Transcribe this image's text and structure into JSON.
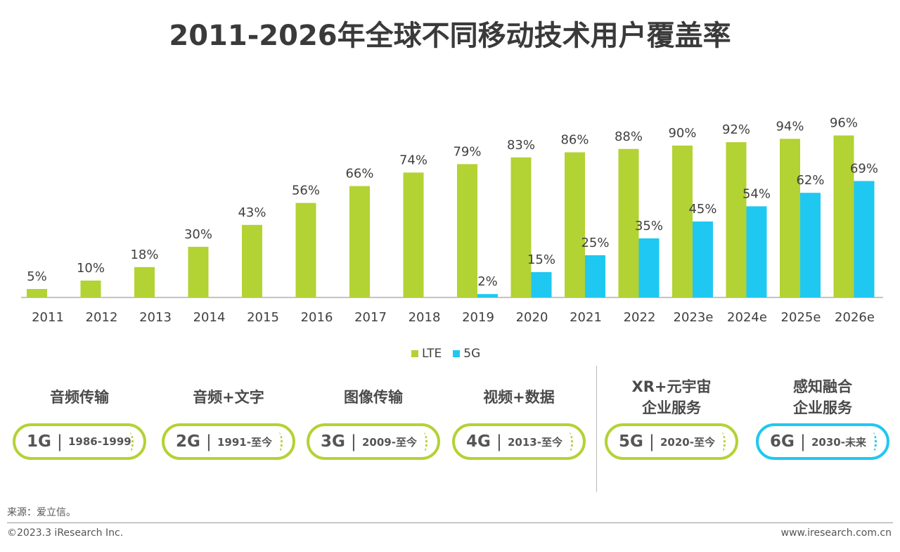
{
  "chart_data": {
    "type": "bar",
    "title": "2011-2026年全球不同移动技术用户覆盖率",
    "categories": [
      "2011",
      "2012",
      "2013",
      "2014",
      "2015",
      "2016",
      "2017",
      "2018",
      "2019",
      "2020",
      "2021",
      "2022",
      "2023e",
      "2024e",
      "2025e",
      "2026e"
    ],
    "series": [
      {
        "name": "LTE",
        "color": "#b3d234",
        "values": [
          5,
          10,
          18,
          30,
          43,
          56,
          66,
          74,
          79,
          83,
          86,
          88,
          90,
          92,
          94,
          96
        ]
      },
      {
        "name": "5G",
        "color": "#1fc8f0",
        "values": [
          null,
          null,
          null,
          null,
          null,
          null,
          null,
          null,
          2,
          15,
          25,
          35,
          45,
          54,
          62,
          69
        ]
      }
    ],
    "unit": "%",
    "ylim": [
      0,
      100
    ],
    "grid": false,
    "legend_position": "bottom"
  },
  "generations": [
    {
      "caption": [
        "音频传输"
      ],
      "gen": "1G",
      "years": "1986-1999",
      "color": "#b3d234"
    },
    {
      "caption": [
        "音频+文字"
      ],
      "gen": "2G",
      "years": "1991-至今",
      "color": "#b3d234"
    },
    {
      "caption": [
        "图像传输"
      ],
      "gen": "3G",
      "years": "2009-至今",
      "color": "#b3d234"
    },
    {
      "caption": [
        "视频+数据"
      ],
      "gen": "4G",
      "years": "2013-至今",
      "color": "#b3d234"
    },
    {
      "caption": [
        "XR+元宇宙",
        "企业服务"
      ],
      "gen": "5G",
      "years": "2020-至今",
      "color": "#b3d234"
    },
    {
      "caption": [
        "感知融合",
        "企业服务"
      ],
      "gen": "6G",
      "years": "2030-未来",
      "color": "#1fc8f0"
    }
  ],
  "bar_separator": "|",
  "footer": {
    "source": "来源：爱立信。",
    "copyright": "©2023.3 iResearch Inc.",
    "website": "www.iresearch.com.cn"
  }
}
